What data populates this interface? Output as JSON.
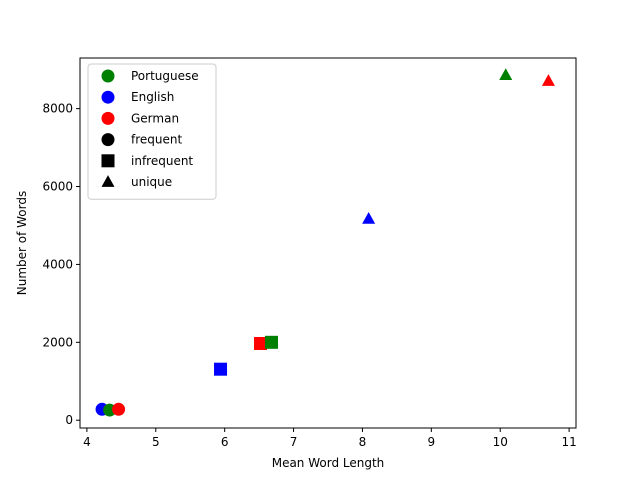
{
  "chart_data": {
    "type": "scatter",
    "title": "",
    "xlabel": "Mean Word Length",
    "ylabel": "Number of Words",
    "xlim": [
      3.9,
      11.1
    ],
    "ylim": [
      -200,
      9300
    ],
    "xticks": [
      4,
      5,
      6,
      7,
      8,
      9,
      10,
      11
    ],
    "yticks": [
      0,
      2000,
      4000,
      6000,
      8000
    ],
    "grid": false,
    "legend_position": "upper-left",
    "colors": {
      "Portuguese": "#008000",
      "English": "#0000ff",
      "German": "#ff0000"
    },
    "markers": {
      "frequent": "circle",
      "infrequent": "square",
      "unique": "triangle"
    },
    "legend": [
      {
        "label": "Portuguese",
        "marker": "circle",
        "color": "#008000"
      },
      {
        "label": "English",
        "marker": "circle",
        "color": "#0000ff"
      },
      {
        "label": "German",
        "marker": "circle",
        "color": "#ff0000"
      },
      {
        "label": "frequent",
        "marker": "circle",
        "color": "#000000"
      },
      {
        "label": "infrequent",
        "marker": "square",
        "color": "#000000"
      },
      {
        "label": "unique",
        "marker": "triangle",
        "color": "#000000"
      }
    ],
    "points": [
      {
        "language": "English",
        "category": "frequent",
        "x": 4.22,
        "y": 280
      },
      {
        "language": "Portuguese",
        "category": "frequent",
        "x": 4.33,
        "y": 260
      },
      {
        "language": "German",
        "category": "frequent",
        "x": 4.46,
        "y": 280
      },
      {
        "language": "English",
        "category": "infrequent",
        "x": 5.94,
        "y": 1310
      },
      {
        "language": "German",
        "category": "infrequent",
        "x": 6.52,
        "y": 1970
      },
      {
        "language": "Portuguese",
        "category": "infrequent",
        "x": 6.68,
        "y": 2000
      },
      {
        "language": "English",
        "category": "unique",
        "x": 8.09,
        "y": 5170
      },
      {
        "language": "Portuguese",
        "category": "unique",
        "x": 10.08,
        "y": 8860
      },
      {
        "language": "German",
        "category": "unique",
        "x": 10.7,
        "y": 8710
      }
    ]
  }
}
